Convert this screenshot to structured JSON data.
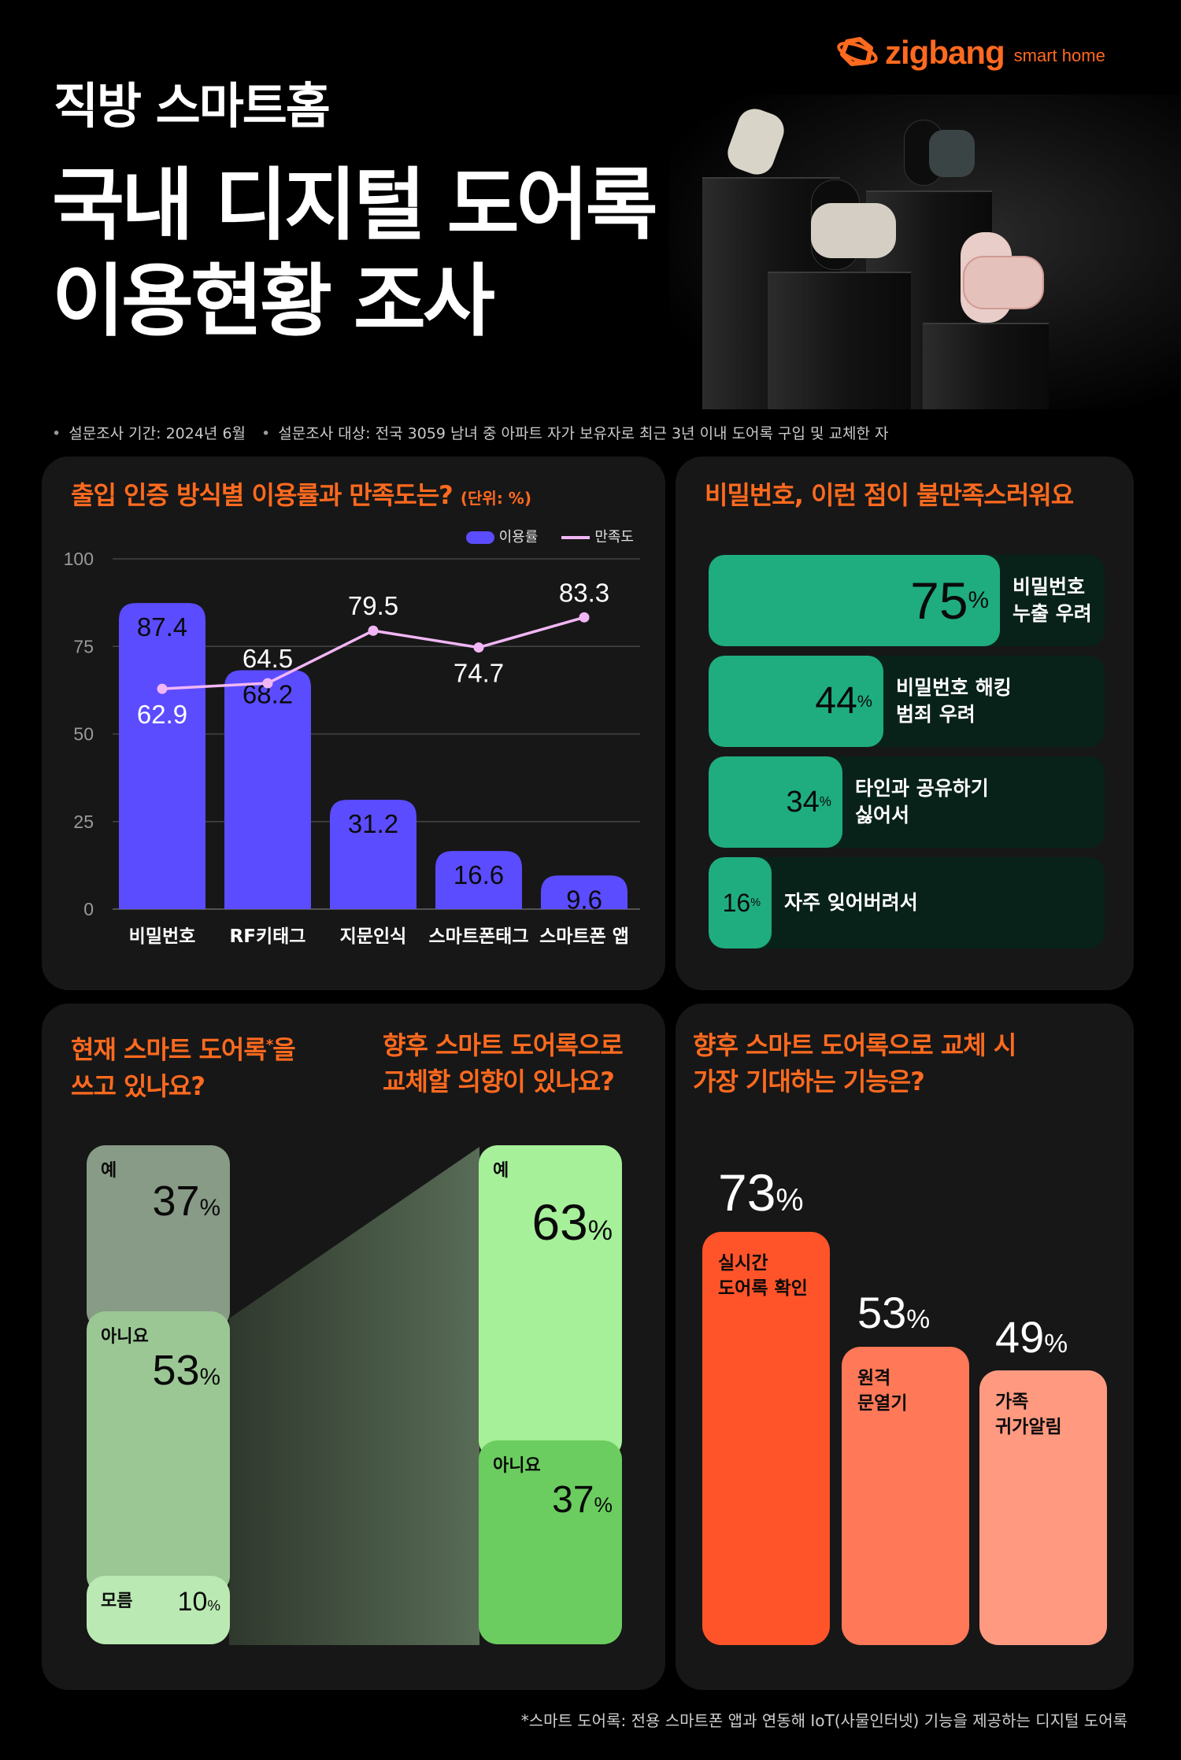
{
  "brand": {
    "name": "zigbang",
    "sub": "smart home",
    "color": "#ff6a1f"
  },
  "hero": {
    "subtitle": "직방 스마트홈",
    "title_line1": "국내 디지털 도어록",
    "title_line2": "이용현황 조사",
    "image": "digital-door-locks-on-pedestals"
  },
  "survey_meta": {
    "period": "설문조사 기간: 2024년 6월",
    "target": "설문조사 대상: 전국 3059 남녀 중 아파트 자가 보유자로 최근 3년 이내 도어록 구입 및 교체한 자"
  },
  "panels": {
    "auth": {
      "title": "출입 인증 방식별 이용률과 만족도는?",
      "unit": "(단위: %)",
      "legend_bar": "이용률",
      "legend_line": "만족도"
    },
    "complaints": {
      "title": "비밀번호, 이런 점이 불만족스러워요"
    },
    "current": {
      "title_left_line1": "현재 스마트 도어록",
      "title_left_star": "*",
      "title_left_line1b": "을",
      "title_left_line2": "쓰고 있나요?",
      "title_right_line1": "향후 스마트 도어록으로",
      "title_right_line2": "교체할 의향이 있나요?"
    },
    "features": {
      "title_line1": "향후 스마트 도어록으로 교체 시",
      "title_line2": "가장 기대하는 기능은?"
    }
  },
  "footnote": "*스마트 도어록: 전용 스마트폰 앱과 연동해 IoT(사물인터넷) 기능을 제공하는 디지털 도어록",
  "chart_data": [
    {
      "type": "bar+line",
      "title": "출입 인증 방식별 이용률과 만족도는? (단위: %)",
      "categories": [
        "비밀번호",
        "RF키태그",
        "지문인식",
        "스마트폰태그",
        "스마트폰 앱"
      ],
      "series": [
        {
          "name": "이용률",
          "type": "bar",
          "color": "#5b4cff",
          "values": [
            87.4,
            68.2,
            31.2,
            16.6,
            9.6
          ]
        },
        {
          "name": "만족도",
          "type": "line",
          "color": "#f1b6f5",
          "values": [
            62.9,
            64.5,
            79.5,
            74.7,
            83.3
          ]
        }
      ],
      "yticks": [
        0,
        25,
        50,
        75,
        100
      ],
      "ylim": [
        0,
        100
      ],
      "grid": true,
      "legend_position": "top-right"
    },
    {
      "type": "bar",
      "orientation": "horizontal",
      "title": "비밀번호, 이런 점이 불만족스러워요",
      "categories": [
        "비밀번호\n누출 우려",
        "비밀번호 해킹\n범죄 우려",
        "타인과 공유하기\n싫어서",
        "자주 잊어버려서"
      ],
      "values": [
        75,
        44,
        34,
        16
      ],
      "unit": "%",
      "color": "#1fad7f"
    },
    {
      "type": "stacked-bar",
      "title": "현재 스마트 도어록을 쓰고 있나요? / 향후 스마트 도어록으로 교체할 의향이 있나요?",
      "bars": [
        {
          "name": "현재 사용",
          "segments": [
            {
              "label": "예",
              "value": 37,
              "color": "#879b86"
            },
            {
              "label": "아니요",
              "value": 53,
              "color": "#9bc795"
            },
            {
              "label": "모름",
              "value": 10,
              "color": "#bbe9b3"
            }
          ]
        },
        {
          "name": "교체 의향",
          "segments": [
            {
              "label": "예",
              "value": 63,
              "color": "#a6f09a"
            },
            {
              "label": "아니요",
              "value": 37,
              "color": "#6bcd5f"
            }
          ]
        }
      ],
      "unit": "%"
    },
    {
      "type": "bar",
      "title": "향후 스마트 도어록으로 교체 시 가장 기대하는 기능은?",
      "categories": [
        "실시간\n도어록 확인",
        "원격\n문열기",
        "가족\n귀가알림"
      ],
      "values": [
        73,
        53,
        49
      ],
      "colors": [
        "#ff5429",
        "#ff7858",
        "#ff9a80"
      ],
      "unit": "%"
    }
  ]
}
